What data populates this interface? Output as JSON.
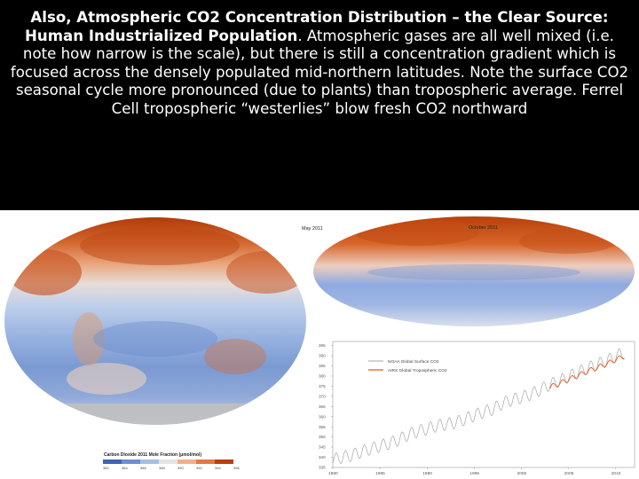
{
  "caption": {
    "bold_part": "Also, Atmospheric CO2 Concentration Distribution – the Clear Source: Human Industrialized Population",
    "rest": ". Atmospheric gases are all well mixed (i.e. note how narrow is the scale), but there is still a concentration gradient which is focused across the densely populated mid-northern latitudes. Note the surface CO2 seasonal cycle more pronounced (due to plants) than tropospheric average. Ferrel Cell tropospheric “westerlies” blow fresh CO2 northward"
  },
  "figure": {
    "map_left_label": "May 2011",
    "map_right_label": "October 2011",
    "colorbar_title": "Carbon Dioxide 2011 Mole Fraction (μmol/mol)",
    "colorbar_ticks": [
      "382",
      "384",
      "386",
      "388",
      "390",
      "392",
      "394",
      "396"
    ],
    "colors": {
      "map_high": "#b8400c",
      "map_low": "#5b7fc0",
      "surface_series": "#a6a6a6",
      "troposphere_series": "#e05a1c"
    }
  },
  "chart_data": {
    "type": "line",
    "title": "",
    "xlabel": "",
    "ylabel": "",
    "x_ticks": [
      "1980",
      "1985",
      "1990",
      "1995",
      "2000",
      "2005",
      "2010"
    ],
    "y_ticks": [
      "395",
      "390",
      "385",
      "380",
      "375",
      "370",
      "365",
      "360",
      "355",
      "350",
      "345",
      "340",
      "335"
    ],
    "xlim": [
      1980,
      2012
    ],
    "ylim": [
      335,
      397
    ],
    "legend_position": "top-left",
    "series": [
      {
        "name": "NOAA Global Surface CO2",
        "x": [
          1980,
          1981,
          1982,
          1983,
          1984,
          1985,
          1986,
          1987,
          1988,
          1989,
          1990,
          1991,
          1992,
          1993,
          1994,
          1995,
          1996,
          1997,
          1998,
          1999,
          2000,
          2001,
          2002,
          2003,
          2004,
          2005,
          2006,
          2007,
          2008,
          2009,
          2010,
          2011
        ],
        "values": [
          338.8,
          340.1,
          341.0,
          342.7,
          344.2,
          345.6,
          346.9,
          348.6,
          351.2,
          352.8,
          354.0,
          355.5,
          356.3,
          357.0,
          358.8,
          360.7,
          362.4,
          363.7,
          366.6,
          368.3,
          369.5,
          371.1,
          373.2,
          375.8,
          377.5,
          379.8,
          381.9,
          383.8,
          385.6,
          387.4,
          389.9,
          391.5
        ]
      },
      {
        "name": "AIRS Global Tropospheric CO2",
        "x": [
          2003,
          2004,
          2005,
          2006,
          2007,
          2008,
          2009,
          2010,
          2011
        ],
        "values": [
          374.5,
          376.3,
          378.3,
          380.3,
          382.3,
          384.1,
          385.9,
          388.1,
          390.0
        ]
      }
    ]
  }
}
